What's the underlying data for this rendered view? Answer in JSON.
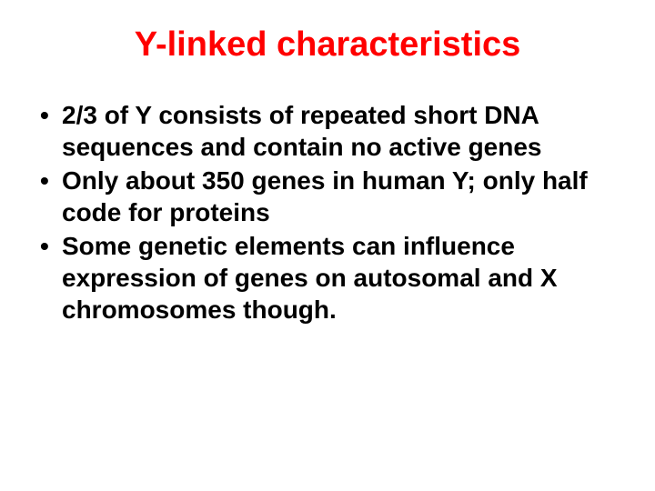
{
  "slide": {
    "title": "Y-linked characteristics",
    "title_color": "#ff0000",
    "title_fontsize": 38,
    "bullets": [
      "2/3 of Y consists of repeated short DNA sequences and contain no active genes",
      "Only about 350 genes in human Y; only half code for proteins",
      "Some genetic elements can influence expression of genes on autosomal and X chromosomes though."
    ],
    "bullet_color": "#000000",
    "bullet_fontsize": 28,
    "bullet_marker": "•",
    "background_color": "#ffffff"
  }
}
